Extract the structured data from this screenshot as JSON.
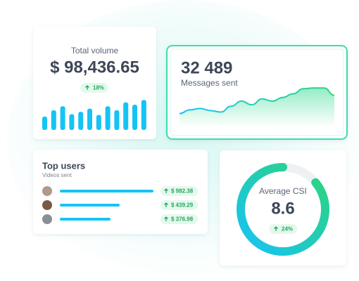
{
  "volume_card": {
    "label": "Total volume",
    "amount": "$ 98,436.65",
    "change": "18%",
    "chart": {
      "values": [
        17,
        25,
        30,
        20,
        23,
        27,
        19,
        30,
        25,
        35,
        32,
        38
      ],
      "ylim": [
        0,
        40
      ],
      "color": "#16c3f5"
    }
  },
  "messages_card": {
    "amount": "32 489",
    "label": "Messages sent",
    "chart": {
      "values": [
        10,
        15,
        17,
        14,
        12,
        20,
        27,
        22,
        30,
        27,
        32,
        37,
        44,
        45,
        45,
        35
      ],
      "ylim": [
        0,
        50
      ],
      "color": "#20d4b4"
    }
  },
  "users_card": {
    "title": "Top users",
    "subtitle": "Videos sent",
    "rows": [
      {
        "amount": "$ 982.38"
      },
      {
        "amount": "$ 439.29"
      },
      {
        "amount": "$ 376.98"
      }
    ]
  },
  "csi_card": {
    "label": "Average CSI",
    "value": 8.6,
    "range": [
      0,
      10
    ],
    "change": "24%"
  }
}
